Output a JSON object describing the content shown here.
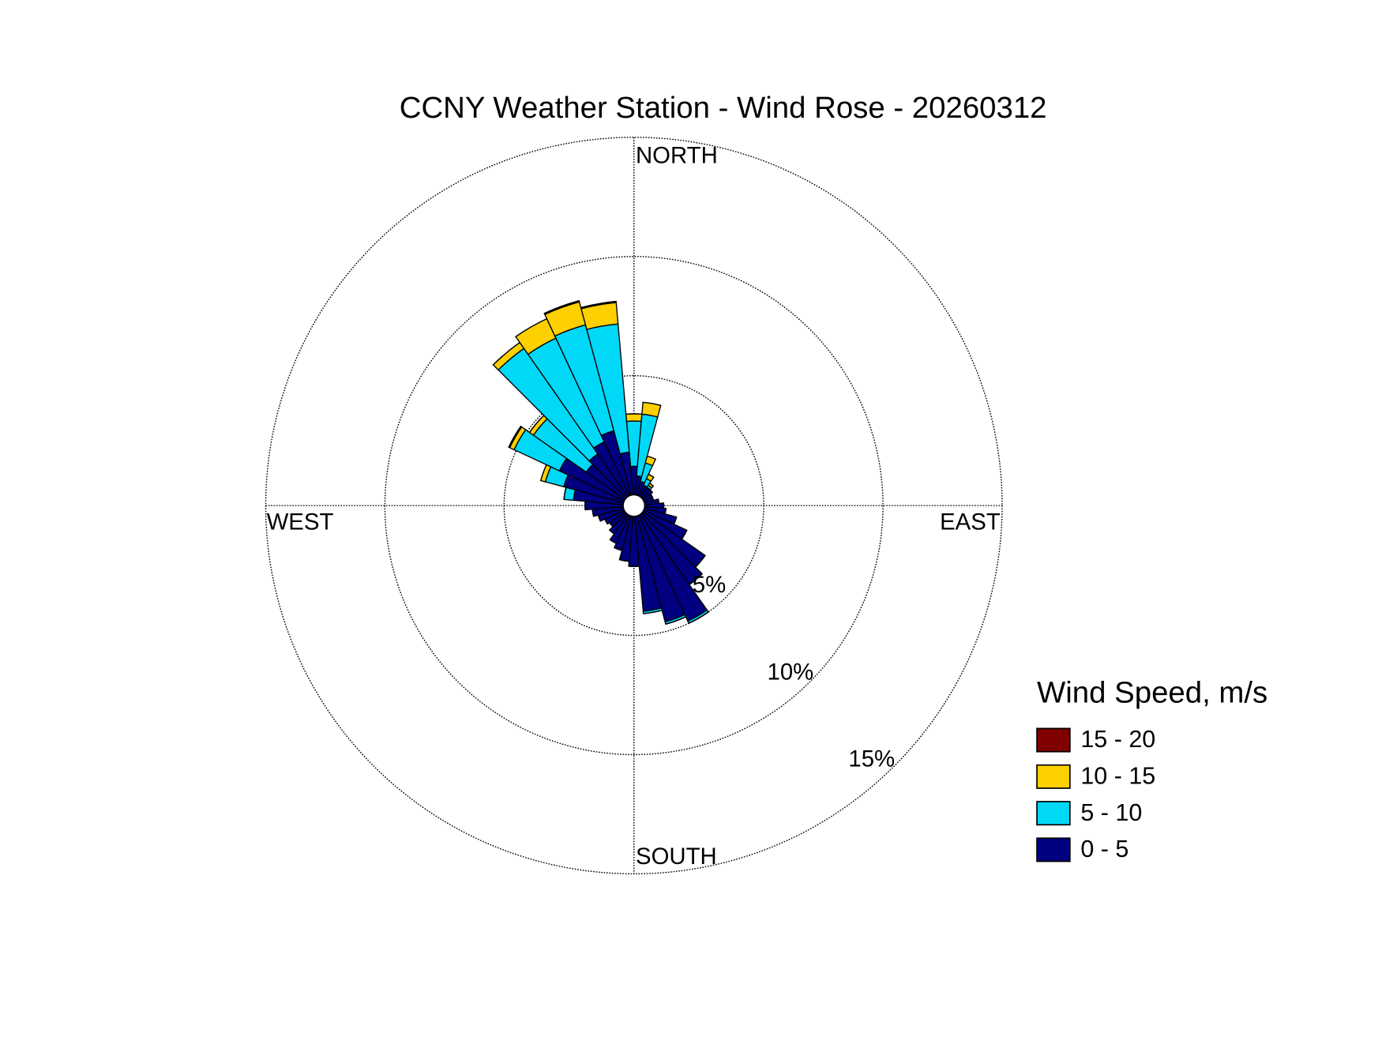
{
  "chart_data": {
    "type": "windrose",
    "title": "CCNY Weather Station - Wind Rose - 20260312",
    "direction_labels": [
      "NORTH",
      "EAST",
      "SOUTH",
      "WEST"
    ],
    "x": [
      0,
      10,
      20,
      30,
      40,
      50,
      60,
      70,
      80,
      90,
      100,
      110,
      120,
      130,
      140,
      150,
      160,
      170,
      180,
      190,
      200,
      210,
      220,
      230,
      240,
      250,
      260,
      270,
      280,
      290,
      300,
      310,
      320,
      330,
      340,
      350
    ],
    "series": [
      {
        "name": "0 - 5",
        "color": "#000080",
        "values": [
          1.2,
          0.8,
          0.6,
          0.5,
          0.5,
          0.5,
          0.4,
          0.4,
          0.6,
          0.8,
          0.9,
          1.4,
          2.0,
          3.2,
          3.6,
          4.9,
          4.6,
          4.0,
          2.1,
          1.9,
          1.5,
          1.3,
          1.0,
          0.8,
          0.9,
          1.1,
          1.3,
          1.6,
          2.1,
          2.6,
          3.0,
          2.0,
          2.2,
          2.5,
          2.8,
          1.8
        ]
      },
      {
        "name": "5 - 10",
        "color": "#00d8f8",
        "values": [
          1.9,
          2.6,
          0.8,
          0.3,
          0.1,
          0,
          0,
          0,
          0,
          0,
          0,
          0,
          0,
          0,
          0,
          0.1,
          0.1,
          0.1,
          0,
          0,
          0,
          0,
          0,
          0,
          0,
          0,
          0,
          0,
          0.4,
          0.8,
          2.1,
          2.7,
          5.4,
          4.8,
          4.6,
          5.4
        ]
      },
      {
        "name": "10 - 15",
        "color": "#ffd000",
        "values": [
          0.3,
          0.5,
          0.3,
          0.2,
          0.1,
          0,
          0,
          0,
          0,
          0,
          0,
          0,
          0,
          0,
          0,
          0,
          0,
          0,
          0,
          0,
          0,
          0,
          0,
          0,
          0,
          0,
          0,
          0,
          0,
          0.2,
          0.2,
          0.2,
          0.3,
          0.9,
          1.0,
          0.9
        ]
      },
      {
        "name": "15 - 20",
        "color": "#800000",
        "values": [
          0,
          0,
          0,
          0,
          0,
          0,
          0,
          0,
          0,
          0,
          0,
          0,
          0,
          0,
          0,
          0,
          0,
          0,
          0,
          0,
          0,
          0,
          0,
          0,
          0,
          0,
          0,
          0,
          0,
          0,
          0.05,
          0,
          0,
          0,
          0.05,
          0.05
        ]
      }
    ],
    "rlim": [
      0,
      15
    ],
    "rticks": [
      {
        "value": 5,
        "label": "5%"
      },
      {
        "value": 10,
        "label": "10%"
      },
      {
        "value": 15,
        "label": "15%"
      }
    ],
    "legend_title": "Wind Speed, m/s",
    "grid": true
  }
}
